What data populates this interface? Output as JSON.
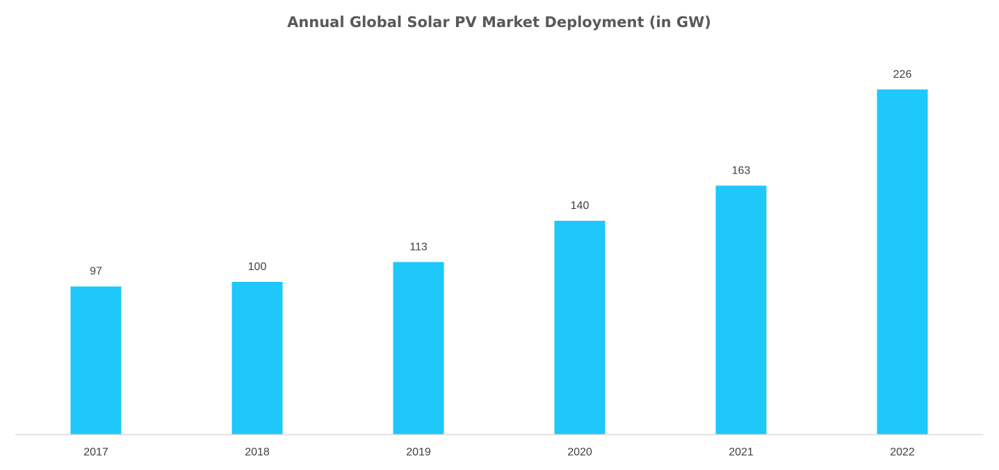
{
  "chart_data": {
    "type": "bar",
    "title": "Annual Global Solar PV Market Deployment (in GW)",
    "xlabel": "",
    "ylabel": "",
    "categories": [
      "2017",
      "2018",
      "2019",
      "2020",
      "2021",
      "2022"
    ],
    "values": [
      97,
      100,
      113,
      140,
      163,
      226
    ],
    "data_labels": [
      "97",
      "100",
      "113",
      "140",
      "163",
      "226"
    ],
    "ylim": [
      0,
      280
    ],
    "grid": false,
    "legend": "none",
    "colors": {
      "bar": "#1ec8fa",
      "axis": "#d9d9d9",
      "title": "#595959",
      "label": "#404040"
    }
  }
}
